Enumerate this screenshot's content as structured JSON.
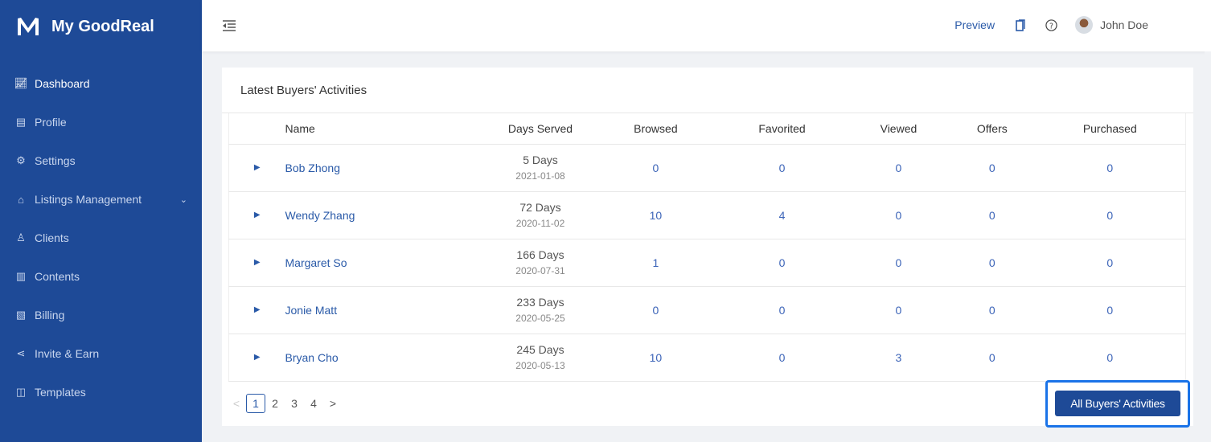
{
  "app": {
    "title": "My GoodReal"
  },
  "sidebar": {
    "items": [
      {
        "label": "Dashboard",
        "icon": "chart-line-icon"
      },
      {
        "label": "Profile",
        "icon": "profile-icon"
      },
      {
        "label": "Settings",
        "icon": "gear-icon"
      },
      {
        "label": "Listings Management",
        "icon": "home-icon"
      },
      {
        "label": "Clients",
        "icon": "user-icon"
      },
      {
        "label": "Contents",
        "icon": "document-icon"
      },
      {
        "label": "Billing",
        "icon": "billing-icon"
      },
      {
        "label": "Invite & Earn",
        "icon": "share-icon"
      },
      {
        "label": "Templates",
        "icon": "layout-icon"
      }
    ]
  },
  "header": {
    "preview": "Preview",
    "user": "John Doe"
  },
  "card": {
    "title": "Latest Buyers' Activities",
    "columns": [
      "Name",
      "Days Served",
      "Browsed",
      "Favorited",
      "Viewed",
      "Offers",
      "Purchased"
    ],
    "rows": [
      {
        "name": "Bob Zhong",
        "days": "5 Days",
        "date": "2021-01-08",
        "browsed": "0",
        "favorited": "0",
        "viewed": "0",
        "offers": "0",
        "purchased": "0"
      },
      {
        "name": "Wendy Zhang",
        "days": "72 Days",
        "date": "2020-11-02",
        "browsed": "10",
        "favorited": "4",
        "viewed": "0",
        "offers": "0",
        "purchased": "0"
      },
      {
        "name": "Margaret So",
        "days": "166 Days",
        "date": "2020-07-31",
        "browsed": "1",
        "favorited": "0",
        "viewed": "0",
        "offers": "0",
        "purchased": "0"
      },
      {
        "name": "Jonie Matt",
        "days": "233 Days",
        "date": "2020-05-25",
        "browsed": "0",
        "favorited": "0",
        "viewed": "0",
        "offers": "0",
        "purchased": "0"
      },
      {
        "name": "Bryan Cho",
        "days": "245 Days",
        "date": "2020-05-13",
        "browsed": "10",
        "favorited": "0",
        "viewed": "3",
        "offers": "0",
        "purchased": "0"
      }
    ],
    "pages": [
      "1",
      "2",
      "3",
      "4"
    ],
    "current_page": "1",
    "all_button": "All Buyers' Activities"
  },
  "colors": {
    "sidebar": "#1e4a97",
    "accent": "#2a5aa8",
    "highlight": "#1a73e8"
  }
}
